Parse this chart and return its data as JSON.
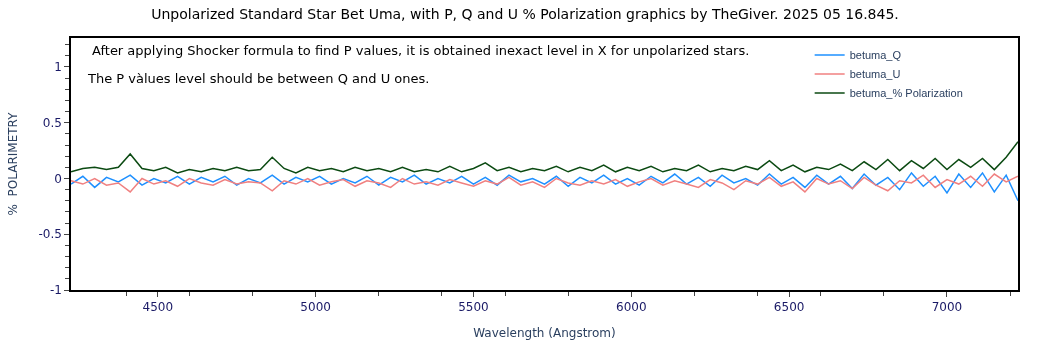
{
  "chart_data": {
    "type": "line",
    "title": "Unpolarized Standard Star Bet Uma, with P, Q and U % Polarization graphics by TheGiver. 2025 05 16.845.",
    "xlabel": "Wavelength (Angstrom)",
    "ylabel": "%  POLARIMETRY",
    "annotations": [
      "After applying Shocker formula to find P values, it is obtained inexact level in X for unpolarized stars.",
      "The P vàlues level should be between Q and U ones."
    ],
    "x": [
      4225,
      4262.5,
      4300,
      4337.5,
      4375,
      4412.5,
      4450,
      4487.5,
      4525,
      4562.5,
      4600,
      4637.5,
      4675,
      4712.5,
      4750,
      4787.5,
      4825,
      4862.5,
      4900,
      4937.5,
      4975,
      5012.5,
      5050,
      5087.5,
      5125,
      5162.5,
      5200,
      5237.5,
      5275,
      5312.5,
      5350,
      5387.5,
      5425,
      5462.5,
      5500,
      5537.5,
      5575,
      5612.5,
      5650,
      5687.5,
      5725,
      5762.5,
      5800,
      5837.5,
      5875,
      5912.5,
      5950,
      5987.5,
      6025,
      6062.5,
      6100,
      6137.5,
      6175,
      6212.5,
      6250,
      6287.5,
      6325,
      6362.5,
      6400,
      6437.5,
      6475,
      6512.5,
      6550,
      6587.5,
      6625,
      6662.5,
      6700,
      6737.5,
      6775,
      6812.5,
      6850,
      6887.5,
      6925,
      6962.5,
      7000,
      7037.5,
      7075,
      7112.5,
      7150,
      7187.5,
      7225
    ],
    "series": [
      {
        "name": "betuma_Q",
        "color": "#1e90ff",
        "values": [
          -0.05,
          0.02,
          -0.08,
          0.01,
          -0.03,
          0.03,
          -0.06,
          0.0,
          -0.04,
          0.02,
          -0.05,
          0.01,
          -0.03,
          0.02,
          -0.06,
          0.0,
          -0.04,
          0.03,
          -0.05,
          0.01,
          -0.03,
          0.02,
          -0.05,
          0.0,
          -0.04,
          0.02,
          -0.06,
          0.01,
          -0.03,
          0.03,
          -0.05,
          0.0,
          -0.04,
          0.02,
          -0.05,
          0.01,
          -0.06,
          0.03,
          -0.03,
          0.0,
          -0.05,
          0.02,
          -0.07,
          0.01,
          -0.04,
          0.03,
          -0.05,
          0.0,
          -0.06,
          0.02,
          -0.04,
          0.04,
          -0.05,
          0.01,
          -0.07,
          0.03,
          -0.04,
          0.0,
          -0.06,
          0.04,
          -0.05,
          0.01,
          -0.08,
          0.03,
          -0.05,
          0.02,
          -0.09,
          0.04,
          -0.06,
          0.01,
          -0.1,
          0.05,
          -0.07,
          0.02,
          -0.13,
          0.04,
          -0.08,
          0.05,
          -0.12,
          0.03,
          -0.2
        ]
      },
      {
        "name": "betuma_U",
        "color": "#f08080",
        "values": [
          -0.02,
          -0.05,
          0.0,
          -0.06,
          -0.04,
          -0.12,
          0.0,
          -0.05,
          -0.02,
          -0.07,
          0.0,
          -0.04,
          -0.06,
          -0.01,
          -0.05,
          -0.03,
          -0.04,
          -0.11,
          -0.02,
          -0.05,
          0.0,
          -0.06,
          -0.03,
          -0.01,
          -0.07,
          -0.02,
          -0.04,
          -0.08,
          0.0,
          -0.05,
          -0.03,
          -0.06,
          -0.01,
          -0.04,
          -0.07,
          -0.02,
          -0.05,
          0.01,
          -0.06,
          -0.03,
          -0.08,
          0.0,
          -0.04,
          -0.06,
          -0.02,
          -0.05,
          -0.01,
          -0.07,
          -0.03,
          0.0,
          -0.06,
          -0.02,
          -0.05,
          -0.08,
          -0.01,
          -0.04,
          -0.1,
          -0.02,
          -0.05,
          0.01,
          -0.07,
          -0.03,
          -0.12,
          0.0,
          -0.05,
          -0.02,
          -0.09,
          0.01,
          -0.06,
          -0.11,
          -0.02,
          -0.04,
          0.03,
          -0.08,
          -0.01,
          -0.05,
          0.02,
          -0.07,
          0.04,
          -0.03,
          0.02
        ]
      },
      {
        "name": "betuma_% Polarization",
        "color": "#0b4a12",
        "values": [
          0.06,
          0.09,
          0.1,
          0.08,
          0.1,
          0.22,
          0.09,
          0.07,
          0.1,
          0.05,
          0.08,
          0.06,
          0.09,
          0.07,
          0.1,
          0.07,
          0.08,
          0.19,
          0.09,
          0.05,
          0.1,
          0.07,
          0.09,
          0.06,
          0.1,
          0.07,
          0.09,
          0.06,
          0.1,
          0.06,
          0.08,
          0.06,
          0.11,
          0.06,
          0.09,
          0.14,
          0.07,
          0.1,
          0.06,
          0.09,
          0.07,
          0.11,
          0.06,
          0.1,
          0.07,
          0.12,
          0.06,
          0.1,
          0.07,
          0.11,
          0.06,
          0.09,
          0.07,
          0.12,
          0.06,
          0.09,
          0.07,
          0.11,
          0.08,
          0.16,
          0.07,
          0.12,
          0.06,
          0.1,
          0.08,
          0.13,
          0.07,
          0.15,
          0.08,
          0.17,
          0.07,
          0.16,
          0.09,
          0.18,
          0.08,
          0.17,
          0.1,
          0.18,
          0.08,
          0.19,
          0.33
        ]
      }
    ],
    "xlim": [
      4225,
      7225
    ],
    "xticks": [
      4500,
      5000,
      5500,
      6000,
      6500,
      7000
    ],
    "ylim": [
      -1,
      1.26
    ],
    "yticks": [
      -1,
      -0.5,
      0,
      0.5,
      1
    ],
    "legend": "top right",
    "marker": "none",
    "line_style": "solid"
  }
}
